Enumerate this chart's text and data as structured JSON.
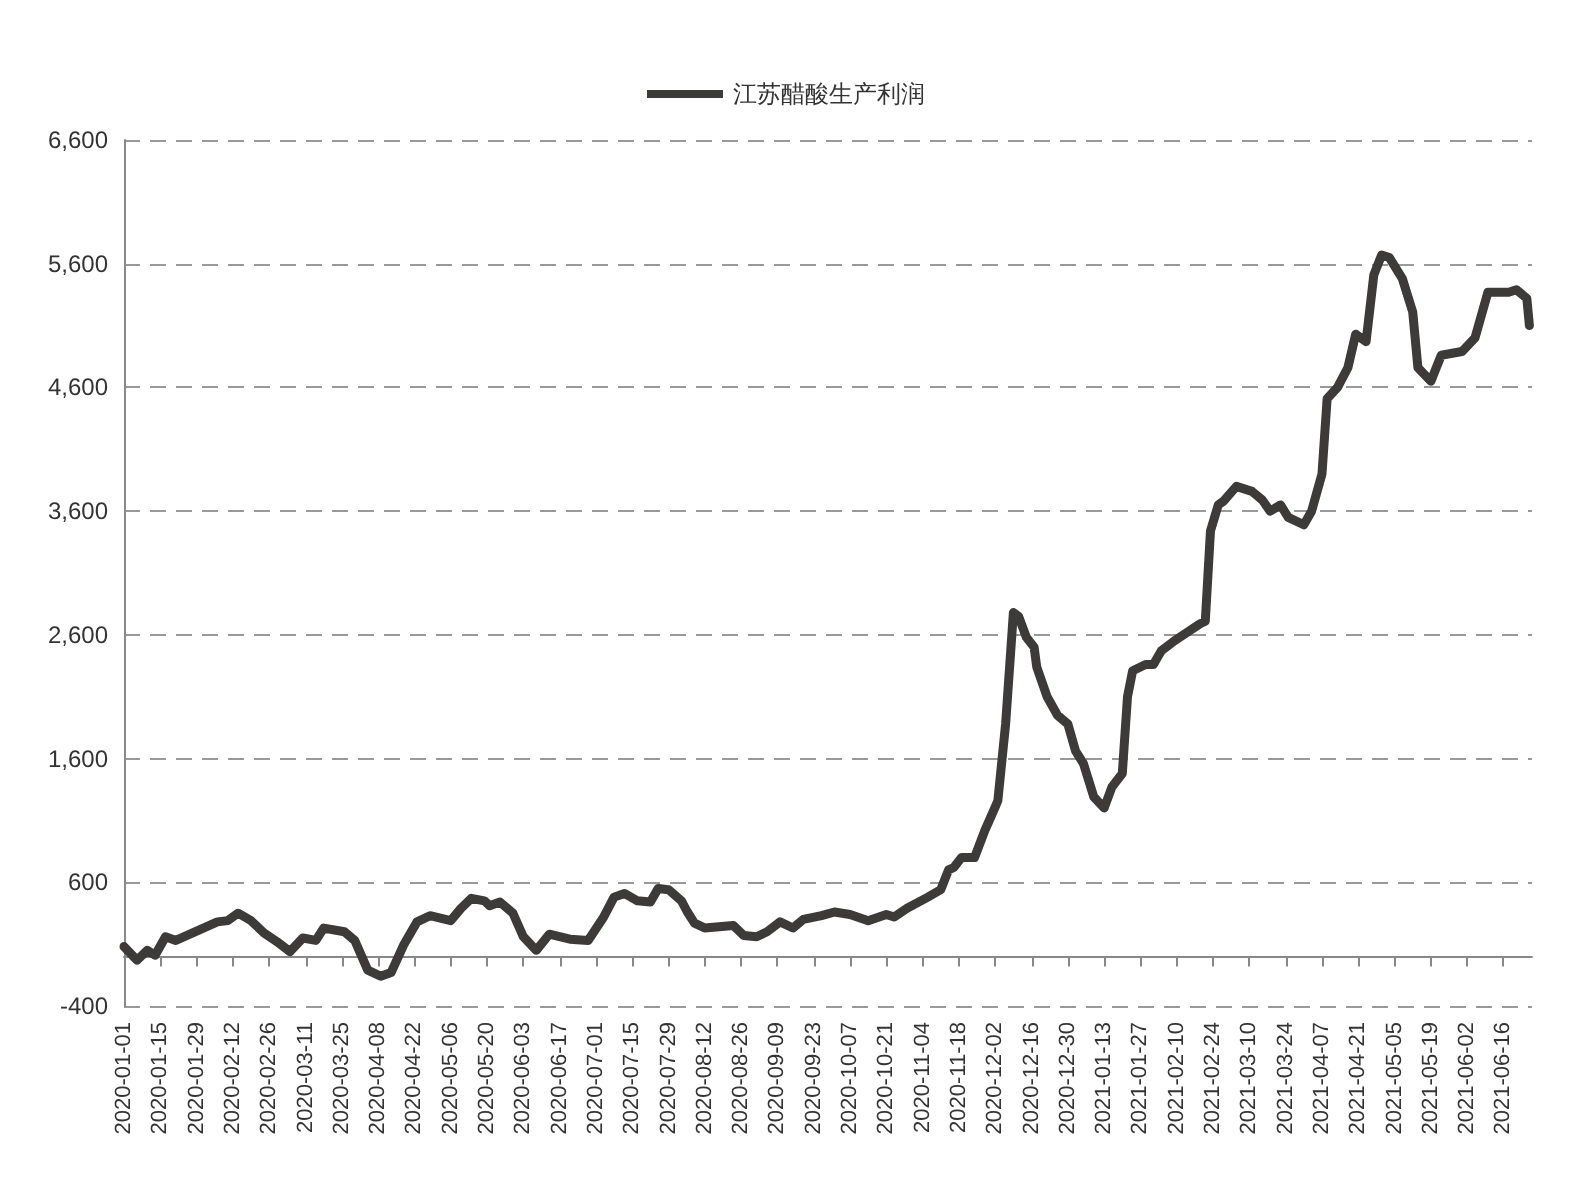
{
  "chart_data": {
    "type": "line",
    "legend": "top",
    "grid": "y",
    "marker": "none",
    "line_style": "solid",
    "xlim": [
      "2020-01-01",
      "2021-06-27"
    ],
    "xticks": [
      "2020-01-01",
      "2020-01-15",
      "2020-01-29",
      "2020-02-12",
      "2020-02-26",
      "2020-03-11",
      "2020-03-25",
      "2020-04-08",
      "2020-04-22",
      "2020-05-06",
      "2020-05-20",
      "2020-06-03",
      "2020-06-17",
      "2020-07-01",
      "2020-07-15",
      "2020-07-29",
      "2020-08-12",
      "2020-08-26",
      "2020-09-09",
      "2020-09-23",
      "2020-10-07",
      "2020-10-21",
      "2020-11-04",
      "2020-11-18",
      "2020-12-02",
      "2020-12-16",
      "2020-12-30",
      "2021-01-13",
      "2021-01-27",
      "2021-02-10",
      "2021-02-24",
      "2021-03-10",
      "2021-03-24",
      "2021-04-07",
      "2021-04-21",
      "2021-05-05",
      "2021-05-19",
      "2021-06-02",
      "2021-06-16"
    ],
    "ylim": [
      -400,
      6600
    ],
    "yticks": [
      {
        "value": -400,
        "label": "-400"
      },
      {
        "value": 600,
        "label": "600"
      },
      {
        "value": 1600,
        "label": "1,600"
      },
      {
        "value": 2600,
        "label": "2,600"
      },
      {
        "value": 3600,
        "label": "3,600"
      },
      {
        "value": 4600,
        "label": "4,600"
      },
      {
        "value": 5600,
        "label": "5,600"
      },
      {
        "value": 6600,
        "label": "6,600"
      }
    ],
    "x": [
      "2020-01-01",
      "2020-01-06",
      "2020-01-10",
      "2020-01-13",
      "2020-01-17",
      "2020-01-21",
      "2020-02-06",
      "2020-02-10",
      "2020-02-14",
      "2020-02-19",
      "2020-02-24",
      "2020-02-29",
      "2020-03-05",
      "2020-03-10",
      "2020-03-15",
      "2020-03-18",
      "2020-03-26",
      "2020-03-30",
      "2020-04-04",
      "2020-04-09",
      "2020-04-13",
      "2020-04-18",
      "2020-04-23",
      "2020-04-28",
      "2020-05-06",
      "2020-05-10",
      "2020-05-14",
      "2020-05-19",
      "2020-05-21",
      "2020-05-25",
      "2020-05-30",
      "2020-06-03",
      "2020-06-08",
      "2020-06-13",
      "2020-06-21",
      "2020-06-28",
      "2020-07-04",
      "2020-07-08",
      "2020-07-12",
      "2020-07-17",
      "2020-07-22",
      "2020-07-25",
      "2020-07-29",
      "2020-08-03",
      "2020-08-05",
      "2020-08-08",
      "2020-08-12",
      "2020-08-23",
      "2020-08-27",
      "2020-09-01",
      "2020-09-05",
      "2020-09-10",
      "2020-09-15",
      "2020-09-19",
      "2020-09-26",
      "2020-10-01",
      "2020-10-07",
      "2020-10-14",
      "2020-10-21",
      "2020-10-24",
      "2020-10-29",
      "2020-11-06",
      "2020-11-11",
      "2020-11-14",
      "2020-11-16",
      "2020-11-19",
      "2020-11-24",
      "2020-11-28",
      "2020-12-02",
      "2020-12-03",
      "2020-12-06",
      "2020-12-09",
      "2020-12-11",
      "2020-12-14",
      "2020-12-17",
      "2020-12-18",
      "2020-12-22",
      "2020-12-26",
      "2020-12-30",
      "2021-01-02",
      "2021-01-05",
      "2021-01-09",
      "2021-01-13",
      "2021-01-16",
      "2021-01-20",
      "2021-01-22",
      "2021-01-24",
      "2021-01-29",
      "2021-02-01",
      "2021-02-04",
      "2021-02-09",
      "2021-02-19",
      "2021-02-21",
      "2021-02-23",
      "2021-02-26",
      "2021-02-28",
      "2021-03-05",
      "2021-03-11",
      "2021-03-15",
      "2021-03-18",
      "2021-03-22",
      "2021-03-25",
      "2021-03-31",
      "2021-04-03",
      "2021-04-07",
      "2021-04-09",
      "2021-04-13",
      "2021-04-17",
      "2021-04-20",
      "2021-04-24",
      "2021-04-27",
      "2021-04-30",
      "2021-05-03",
      "2021-05-08",
      "2021-05-12",
      "2021-05-14",
      "2021-05-19",
      "2021-05-23",
      "2021-05-31",
      "2021-06-05",
      "2021-06-10",
      "2021-06-18",
      "2021-06-21",
      "2021-06-25",
      "2021-06-26"
    ],
    "series": [
      {
        "name": "江苏醋酸生产利润",
        "color": "#3d3a3a",
        "values": [
          80,
          -30,
          50,
          10,
          160,
          130,
          280,
          290,
          350,
          290,
          190,
          120,
          40,
          150,
          130,
          230,
          200,
          130,
          -110,
          -160,
          -130,
          100,
          280,
          330,
          290,
          390,
          470,
          450,
          410,
          440,
          350,
          160,
          50,
          180,
          140,
          130,
          320,
          480,
          510,
          450,
          440,
          550,
          540,
          450,
          370,
          270,
          230,
          250,
          170,
          160,
          200,
          280,
          230,
          300,
          330,
          360,
          340,
          290,
          340,
          320,
          390,
          480,
          540,
          700,
          720,
          800,
          800,
          1020,
          1210,
          1260,
          1880,
          2780,
          2750,
          2580,
          2500,
          2340,
          2100,
          1950,
          1880,
          1660,
          1560,
          1290,
          1200,
          1370,
          1480,
          2100,
          2310,
          2360,
          2360,
          2470,
          2550,
          2690,
          2710,
          3440,
          3650,
          3680,
          3800,
          3760,
          3690,
          3600,
          3650,
          3550,
          3490,
          3600,
          3900,
          4510,
          4600,
          4760,
          5030,
          4970,
          5510,
          5670,
          5650,
          5480,
          5210,
          4760,
          4650,
          4860,
          4890,
          5000,
          5370,
          5370,
          5390,
          5320,
          5100
        ]
      }
    ]
  }
}
